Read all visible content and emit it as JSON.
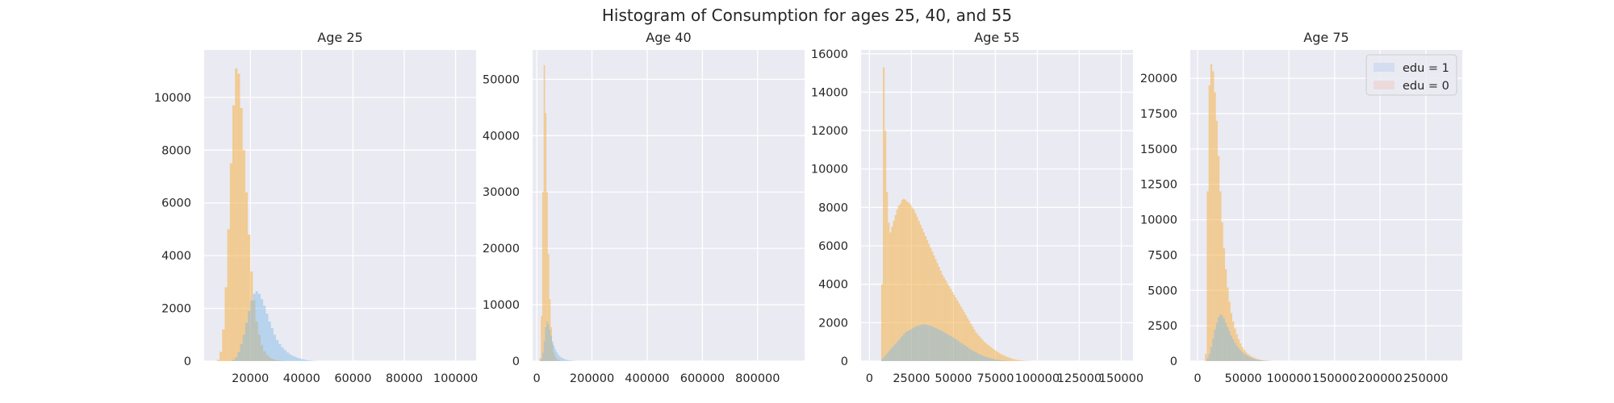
{
  "figure": {
    "suptitle": "Histogram of Consumption for ages 25, 40, and 55"
  },
  "colors": {
    "background": "#eaeaf2",
    "grid": "#ffffff",
    "edu0": "#f5b655",
    "edu1": "#7ab8e6",
    "edu0_legend": "#ecdada",
    "edu1_legend": "#d3dcf0"
  },
  "chart_data": [
    {
      "type": "histogram",
      "title": "Age 25",
      "xlim": [
        2000,
        108000
      ],
      "ylim": [
        0,
        11800
      ],
      "xticks": [
        20000,
        40000,
        60000,
        80000,
        100000
      ],
      "xtick_labels": [
        "20000",
        "40000",
        "60000",
        "80000",
        "100000"
      ],
      "yticks": [
        0,
        2000,
        4000,
        6000,
        8000,
        10000
      ],
      "ytick_labels": [
        "0",
        "2000",
        "4000",
        "6000",
        "8000",
        "10000"
      ],
      "grid": true,
      "series": [
        {
          "name": "edu = 0",
          "color_key": "edu0",
          "x_start": 6000,
          "bin_width": 1000,
          "counts": [
            0,
            50,
            350,
            1200,
            2800,
            5000,
            7500,
            9700,
            11100,
            10900,
            9600,
            8000,
            6400,
            4800,
            3400,
            2300,
            1500,
            1000,
            600,
            380,
            240,
            150,
            90,
            50,
            30,
            20,
            10,
            5,
            0
          ]
        },
        {
          "name": "edu = 1",
          "color_key": "edu1",
          "x_start": 12000,
          "bin_width": 1000,
          "counts": [
            0,
            50,
            150,
            350,
            650,
            1000,
            1450,
            1900,
            2300,
            2550,
            2650,
            2550,
            2350,
            2100,
            1800,
            1500,
            1250,
            1000,
            800,
            650,
            520,
            420,
            330,
            260,
            200,
            160,
            120,
            90,
            70,
            50,
            30,
            20,
            10,
            5,
            0
          ]
        }
      ]
    },
    {
      "type": "histogram",
      "title": "Age 40",
      "xlim": [
        -15000,
        970000
      ],
      "ylim": [
        0,
        55200
      ],
      "xticks": [
        0,
        200000,
        400000,
        600000,
        800000
      ],
      "xtick_labels": [
        "0",
        "200000",
        "400000",
        "600000",
        "800000"
      ],
      "yticks": [
        0,
        10000,
        20000,
        30000,
        40000,
        50000
      ],
      "ytick_labels": [
        "0",
        "10000",
        "20000",
        "30000",
        "40000",
        "50000"
      ],
      "grid": true,
      "series": [
        {
          "name": "edu = 0",
          "color_key": "edu0",
          "x_start": 10000,
          "bin_width": 5000,
          "counts": [
            500,
            8000,
            30000,
            52500,
            44000,
            30000,
            19000,
            11000,
            6000,
            3000,
            1500,
            800,
            400,
            200,
            100,
            50,
            0
          ]
        },
        {
          "name": "edu = 1",
          "color_key": "edu1",
          "x_start": 10000,
          "bin_width": 5000,
          "counts": [
            100,
            500,
            1500,
            3500,
            6000,
            7000,
            6500,
            5500,
            4500,
            3500,
            2700,
            2100,
            1600,
            1200,
            900,
            700,
            550,
            420,
            320,
            250,
            190,
            140,
            100,
            70,
            50,
            30,
            20,
            10,
            0
          ]
        }
      ]
    },
    {
      "type": "histogram",
      "title": "Age 55",
      "xlim": [
        -5000,
        157000
      ],
      "ylim": [
        0,
        16200
      ],
      "xticks": [
        0,
        25000,
        50000,
        75000,
        100000,
        125000,
        150000
      ],
      "xtick_labels": [
        "0",
        "25000",
        "50000",
        "75000",
        "100000",
        "125000",
        "150000"
      ],
      "yticks": [
        0,
        2000,
        4000,
        6000,
        8000,
        10000,
        12000,
        14000,
        16000
      ],
      "ytick_labels": [
        "0",
        "2000",
        "4000",
        "6000",
        "8000",
        "10000",
        "12000",
        "14000",
        "16000"
      ],
      "grid": true,
      "series": [
        {
          "name": "edu = 0",
          "color_key": "edu0",
          "x_start": 7000,
          "bin_width": 1000,
          "counts": [
            4000,
            15300,
            12000,
            8800,
            7200,
            6700,
            7000,
            7300,
            7600,
            7900,
            8100,
            8200,
            8400,
            8450,
            8400,
            8300,
            8250,
            8150,
            8000,
            7900,
            7700,
            7500,
            7300,
            7100,
            6900,
            6700,
            6500,
            6300,
            6100,
            5900,
            5700,
            5500,
            5300,
            5100,
            4900,
            4700,
            4500,
            4350,
            4200,
            4050,
            3900,
            3750,
            3600,
            3450,
            3300,
            3150,
            3000,
            2850,
            2700,
            2550,
            2400,
            2250,
            2100,
            1950,
            1800,
            1650,
            1500,
            1400,
            1300,
            1200,
            1100,
            1000,
            930,
            860,
            790,
            720,
            650,
            590,
            530,
            470,
            410,
            360,
            320,
            280,
            240,
            200,
            170,
            140,
            110,
            90,
            70,
            55,
            45,
            35,
            25,
            18,
            12,
            8,
            5,
            3,
            0
          ]
        },
        {
          "name": "edu = 1",
          "color_key": "edu1",
          "x_start": 7000,
          "bin_width": 1000,
          "counts": [
            100,
            200,
            300,
            400,
            500,
            600,
            700,
            800,
            900,
            1000,
            1100,
            1200,
            1300,
            1400,
            1500,
            1550,
            1600,
            1650,
            1700,
            1750,
            1800,
            1830,
            1860,
            1880,
            1900,
            1910,
            1900,
            1880,
            1860,
            1830,
            1800,
            1760,
            1720,
            1680,
            1640,
            1600,
            1550,
            1500,
            1450,
            1400,
            1350,
            1300,
            1250,
            1200,
            1140,
            1080,
            1020,
            960,
            900,
            840,
            780,
            720,
            660,
            600,
            550,
            500,
            450,
            400,
            360,
            320,
            280,
            250,
            220,
            190,
            160,
            140,
            120,
            100,
            85,
            70,
            58,
            46,
            36,
            28,
            20,
            14,
            9,
            5,
            2,
            0
          ]
        }
      ]
    },
    {
      "type": "histogram",
      "title": "Age 75",
      "xlim": [
        -8000,
        290000
      ],
      "ylim": [
        0,
        22000
      ],
      "xticks": [
        0,
        50000,
        100000,
        150000,
        200000,
        250000
      ],
      "xtick_labels": [
        "0",
        "50000",
        "100000",
        "150000",
        "200000",
        "250000"
      ],
      "yticks": [
        0,
        2500,
        5000,
        7500,
        10000,
        12500,
        15000,
        17500,
        20000
      ],
      "ytick_labels": [
        "0",
        "2500",
        "5000",
        "7500",
        "10000",
        "12500",
        "15000",
        "17500",
        "20000"
      ],
      "grid": true,
      "legend": {
        "position": "upper right",
        "entries": [
          "edu = 1",
          "edu = 0"
        ]
      },
      "series": [
        {
          "name": "edu = 0",
          "color_key": "edu0",
          "x_start": 8000,
          "bin_width": 2000,
          "counts": [
            500,
            12000,
            19500,
            21000,
            20500,
            19000,
            17000,
            14500,
            12000,
            9800,
            8000,
            6500,
            5200,
            4200,
            3400,
            2800,
            2300,
            1900,
            1550,
            1250,
            1000,
            800,
            650,
            520,
            420,
            340,
            270,
            210,
            160,
            120,
            90,
            70,
            50,
            35,
            25,
            15,
            8,
            4,
            0
          ]
        },
        {
          "name": "edu = 1",
          "color_key": "edu1",
          "x_start": 8000,
          "bin_width": 2000,
          "counts": [
            0,
            200,
            500,
            1000,
            1600,
            2200,
            2700,
            3100,
            3300,
            3200,
            3000,
            2700,
            2400,
            2100,
            1800,
            1550,
            1300,
            1100,
            920,
            770,
            640,
            530,
            440,
            360,
            290,
            230,
            180,
            140,
            110,
            80,
            60,
            40,
            25,
            15,
            8,
            4,
            0
          ]
        }
      ]
    }
  ]
}
